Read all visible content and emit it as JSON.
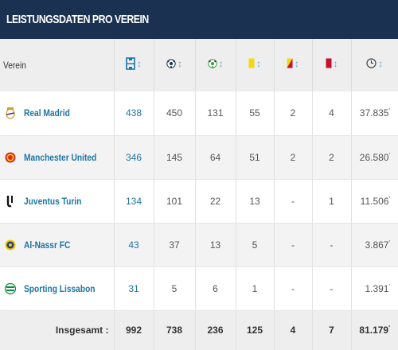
{
  "header": {
    "title": "LEISTUNGSDATEN PRO VEREIN"
  },
  "columns": {
    "verein": "Verein",
    "icons": [
      "appearances-icon",
      "goals-icon",
      "assists-icon",
      "yellow-card-icon",
      "yellow-red-card-icon",
      "red-card-icon",
      "minutes-clock-icon"
    ]
  },
  "rows": [
    {
      "club": "Real Madrid",
      "crest": "real-madrid-crest",
      "apps": "438",
      "goals": "450",
      "assists": "131",
      "yellow": "55",
      "yellowred": "2",
      "red": "4",
      "minutes": "37.835"
    },
    {
      "club": "Manchester United",
      "crest": "manchester-united-crest",
      "apps": "346",
      "goals": "145",
      "assists": "64",
      "yellow": "51",
      "yellowred": "2",
      "red": "2",
      "minutes": "26.580"
    },
    {
      "club": "Juventus Turin",
      "crest": "juventus-crest",
      "apps": "134",
      "goals": "101",
      "assists": "22",
      "yellow": "13",
      "yellowred": "-",
      "red": "1",
      "minutes": "11.506"
    },
    {
      "club": "Al-Nassr FC",
      "crest": "al-nassr-crest",
      "apps": "43",
      "goals": "37",
      "assists": "13",
      "yellow": "5",
      "yellowred": "-",
      "red": "-",
      "minutes": "3.867"
    },
    {
      "club": "Sporting Lissabon",
      "crest": "sporting-crest",
      "apps": "31",
      "goals": "5",
      "assists": "6",
      "yellow": "1",
      "yellowred": "-",
      "red": "-",
      "minutes": "1.391"
    }
  ],
  "totals": {
    "label": "Insgesamt :",
    "apps": "992",
    "goals": "738",
    "assists": "236",
    "yellow": "125",
    "yellowred": "4",
    "red": "7",
    "minutes": "81.179"
  },
  "minute_mark": "'",
  "colors": {
    "header_bg": "#1a3151",
    "link": "#1d75a3",
    "yellow_card": "#f5d90a",
    "red_card": "#c8102e"
  }
}
